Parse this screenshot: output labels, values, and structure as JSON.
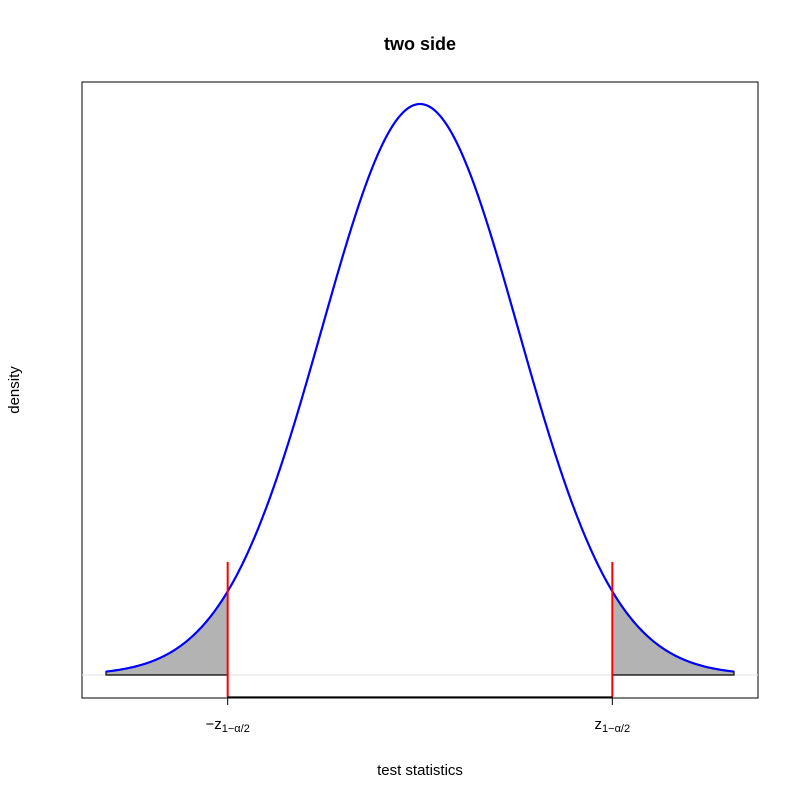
{
  "chart_data": {
    "type": "area",
    "title": "two side",
    "xlabel": "test statistics",
    "ylabel": "density",
    "distribution": "standard normal",
    "xlim": [
      -3.2,
      3.2
    ],
    "critical_value": 1.96,
    "critical_labels": {
      "lower": {
        "prefix": "−z",
        "sub": "1−α/2"
      },
      "upper": {
        "prefix": "z",
        "sub": "1−α/2"
      }
    },
    "shaded_tails": [
      "lower",
      "upper"
    ],
    "grid": false,
    "colors": {
      "curve": "#0000ff",
      "critical_line": "#ff0000",
      "tail_fill": "#b3b3b3",
      "tail_outline": "#000000",
      "baseline": "#e0e0e0",
      "frame": "#000000"
    }
  }
}
